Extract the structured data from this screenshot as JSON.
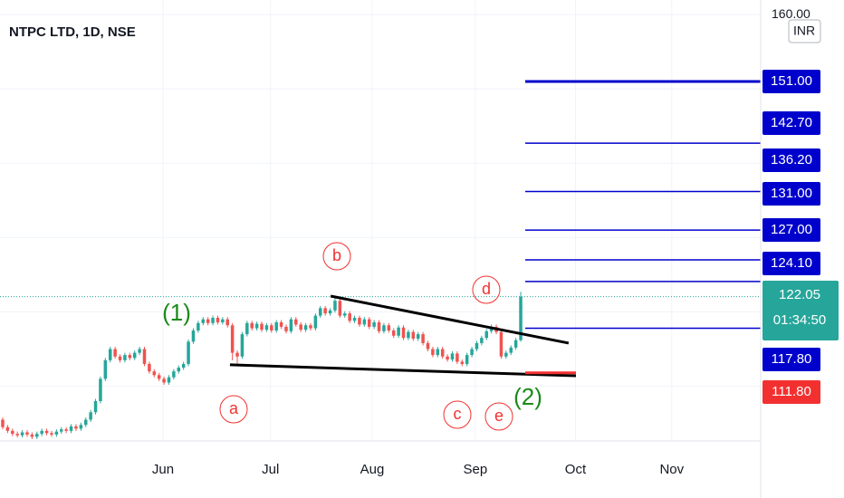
{
  "chart_data": {
    "type": "candlestick",
    "title": "NTPC LTD, 1D, NSE",
    "currency": "INR",
    "up_color": "#26a69a",
    "down_color": "#ef5350",
    "grid": true,
    "xlim": [
      -0.556,
      155.1
    ],
    "ylim": [
      102.64,
      161.96
    ],
    "xticks": [
      {
        "value": 32.8,
        "label": "Jun"
      },
      {
        "value": 54.8,
        "label": "Jul"
      },
      {
        "value": 75.6,
        "label": "Aug"
      },
      {
        "value": 96.7,
        "label": "Sep"
      },
      {
        "value": 117.2,
        "label": "Oct"
      },
      {
        "value": 136.9,
        "label": "Nov"
      }
    ],
    "yticks": [
      {
        "value": 160,
        "label": "160.00"
      }
    ],
    "ygrid": [
      110,
      120,
      130,
      140,
      150,
      160
    ],
    "candles": [
      [
        105.5,
        105.8,
        104.2,
        104.5
      ],
      [
        104.5,
        104.8,
        103.7,
        104
      ],
      [
        104,
        104.3,
        103.3,
        103.6
      ],
      [
        103.6,
        103.9,
        103.1,
        103.4
      ],
      [
        103.4,
        104.1,
        103.1,
        103.8
      ],
      [
        103.8,
        104.1,
        103.2,
        103.5
      ],
      [
        103.5,
        103.8,
        102.9,
        103.2
      ],
      [
        103.2,
        103.9,
        102.9,
        103.6
      ],
      [
        103.6,
        104.3,
        103.3,
        104
      ],
      [
        104,
        104.3,
        103.4,
        103.7
      ],
      [
        103.7,
        104,
        103.2,
        103.5
      ],
      [
        103.5,
        104.2,
        103.2,
        103.9
      ],
      [
        103.9,
        104.5,
        103.6,
        104.2
      ],
      [
        104.2,
        104.5,
        103.7,
        104
      ],
      [
        104,
        104.9,
        103.7,
        104.6
      ],
      [
        104.6,
        104.9,
        104,
        104.3
      ],
      [
        104.3,
        105.1,
        104,
        104.8
      ],
      [
        104.8,
        105.8,
        104.5,
        105.5
      ],
      [
        105.5,
        106.8,
        105.2,
        106.5
      ],
      [
        106.5,
        108.3,
        106.2,
        108
      ],
      [
        108,
        111.3,
        107.7,
        111
      ],
      [
        111,
        113.8,
        110.7,
        113.5
      ],
      [
        113.5,
        115.3,
        113.2,
        115
      ],
      [
        115,
        115.3,
        113.7,
        114
      ],
      [
        114,
        114.3,
        113.2,
        113.5
      ],
      [
        113.5,
        114.5,
        113.2,
        114.2
      ],
      [
        114.2,
        114.5,
        113.5,
        113.8
      ],
      [
        113.8,
        114.8,
        113.5,
        114.5
      ],
      [
        114.5,
        115.3,
        114.2,
        115
      ],
      [
        115,
        115.3,
        112.7,
        113
      ],
      [
        113,
        113.3,
        111.7,
        112
      ],
      [
        112,
        112.3,
        111.2,
        111.5
      ],
      [
        111.5,
        111.8,
        110.7,
        111
      ],
      [
        111,
        111.3,
        110.2,
        110.5
      ],
      [
        110.5,
        111.5,
        110.2,
        111.2
      ],
      [
        111.2,
        112.3,
        110.9,
        112
      ],
      [
        112,
        112.8,
        111.7,
        112.5
      ],
      [
        112.5,
        113.3,
        112.2,
        113
      ],
      [
        113,
        116.3,
        112.7,
        116
      ],
      [
        116,
        117.8,
        115.7,
        117.5
      ],
      [
        117.5,
        118.8,
        117.2,
        118.5
      ],
      [
        118.5,
        119.3,
        118.2,
        119
      ],
      [
        119,
        119.3,
        118.2,
        118.5
      ],
      [
        118.5,
        119.5,
        118.2,
        119.2
      ],
      [
        119.2,
        119.5,
        118.3,
        118.6
      ],
      [
        118.6,
        119.3,
        118.3,
        119
      ],
      [
        119,
        119.3,
        117.9,
        118.2
      ],
      [
        118.2,
        118.5,
        113.5,
        114.5
      ],
      [
        114.5,
        114.8,
        113,
        114
      ],
      [
        114,
        117.3,
        113.7,
        117
      ],
      [
        117,
        118.8,
        116.7,
        118.5
      ],
      [
        118.5,
        118.8,
        117.5,
        117.8
      ],
      [
        117.8,
        118.7,
        117.5,
        118.4
      ],
      [
        118.4,
        118.7,
        117.3,
        117.6
      ],
      [
        117.6,
        118.5,
        117.3,
        118.2
      ],
      [
        118.2,
        118.5,
        117.2,
        117.5
      ],
      [
        117.5,
        118.9,
        117.2,
        118.6
      ],
      [
        118.6,
        118.9,
        117.7,
        118
      ],
      [
        118,
        118.3,
        117.1,
        117.4
      ],
      [
        117.4,
        119.3,
        117.1,
        119
      ],
      [
        119,
        119.3,
        118,
        118.3
      ],
      [
        118.3,
        118.6,
        117.3,
        117.6
      ],
      [
        117.6,
        118.5,
        117.3,
        118.2
      ],
      [
        118.2,
        118.5,
        117.5,
        117.8
      ],
      [
        117.8,
        119.8,
        117.5,
        119.5
      ],
      [
        119.5,
        120.8,
        119.2,
        120.5
      ],
      [
        120.5,
        120.8,
        119.5,
        119.8
      ],
      [
        119.8,
        120.5,
        119.5,
        120.2
      ],
      [
        120.2,
        122.1,
        119.9,
        121.5
      ],
      [
        121.5,
        121.8,
        119.2,
        119.5
      ],
      [
        119.5,
        120.1,
        119.2,
        119.8
      ],
      [
        119.8,
        120.1,
        118.5,
        118.8
      ],
      [
        118.8,
        119.5,
        118.5,
        119.2
      ],
      [
        119.2,
        119.5,
        118,
        118.3
      ],
      [
        118.3,
        119.3,
        118,
        119
      ],
      [
        119,
        119.3,
        117.7,
        118
      ],
      [
        118,
        118.9,
        117.7,
        118.6
      ],
      [
        118.6,
        118.9,
        117.1,
        117.4
      ],
      [
        117.4,
        118.5,
        117.1,
        118.2
      ],
      [
        118.2,
        118.5,
        117.2,
        117.5
      ],
      [
        117.5,
        117.8,
        116.5,
        116.8
      ],
      [
        116.8,
        118.2,
        116.5,
        117.9
      ],
      [
        117.9,
        118.2,
        116.2,
        116.5
      ],
      [
        116.5,
        117.6,
        116.2,
        117.3
      ],
      [
        117.3,
        117.6,
        116.1,
        116.4
      ],
      [
        116.4,
        117.3,
        116.1,
        117
      ],
      [
        117,
        117.3,
        115.5,
        115.8
      ],
      [
        115.8,
        116.1,
        114.7,
        115
      ],
      [
        115,
        115.3,
        113.9,
        114.2
      ],
      [
        114.2,
        115.3,
        113.9,
        115
      ],
      [
        115,
        115.3,
        113.7,
        114
      ],
      [
        114,
        114.3,
        113.3,
        113.6
      ],
      [
        113.6,
        114.7,
        113.3,
        114.4
      ],
      [
        114.4,
        114.7,
        113,
        113.3
      ],
      [
        113.3,
        113.6,
        112.7,
        113
      ],
      [
        113,
        114.5,
        112.7,
        114.2
      ],
      [
        114.2,
        115.3,
        113.9,
        115
      ],
      [
        115,
        116.1,
        114.7,
        115.8
      ],
      [
        115.8,
        116.8,
        115.5,
        116.5
      ],
      [
        116.5,
        117.7,
        116.2,
        117.4
      ],
      [
        117.4,
        118.3,
        117.1,
        118
      ],
      [
        118,
        118.3,
        117,
        117.3
      ],
      [
        117.3,
        117.6,
        113.7,
        114
      ],
      [
        114,
        114.8,
        113.7,
        114.5
      ],
      [
        114.5,
        115.5,
        114.2,
        115.2
      ],
      [
        115.2,
        116.5,
        114.9,
        116.2
      ],
      [
        116.2,
        122.7,
        116,
        122.05
      ]
    ],
    "trendlines": [
      [
        [
          67.1,
          122.13
        ],
        [
          115.8,
          115.8
        ]
      ],
      [
        [
          46.5,
          112.88
        ],
        [
          117.3,
          111.41
        ]
      ]
    ],
    "levels": {
      "values": [
        151,
        142.7,
        136.2,
        131,
        127,
        124.1,
        117.8,
        111.8
      ],
      "value_labels": [
        "151.00",
        "142.70",
        "136.20",
        "131.00",
        "127.00",
        "124.10",
        "117.80",
        "111.80"
      ],
      "color": "#0000cc",
      "support_color": "#f23030"
    },
    "last_price": 122.05,
    "last_price_label": "122.05",
    "countdown": "01:34:50",
    "last_color": "#26a69a",
    "wave_labels": [
      "(1)",
      "(2)"
    ],
    "wave_color": "#1a8a1a",
    "sub_wave_labels": [
      "a",
      "b",
      "c",
      "d",
      "e"
    ],
    "sub_wave_color": "#f23030"
  }
}
